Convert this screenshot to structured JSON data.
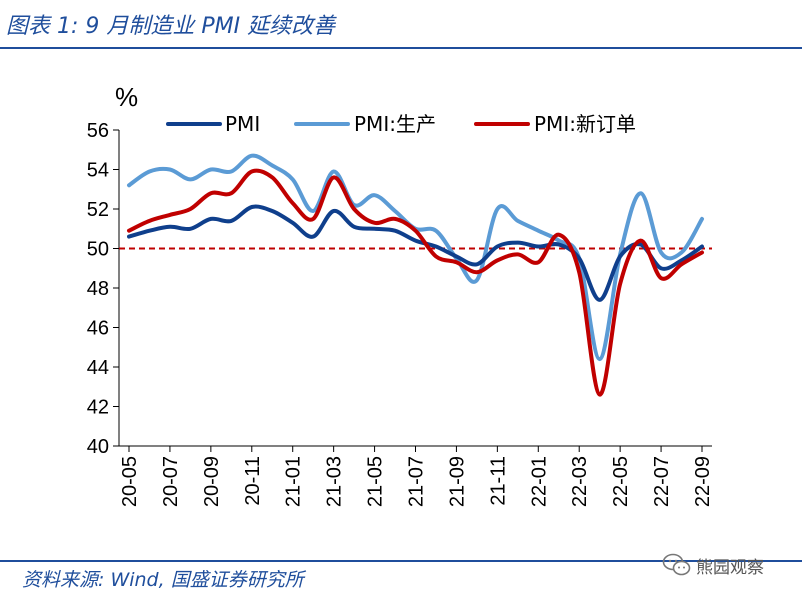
{
  "header": {
    "title": "图表 1:  9 月制造业 PMI 延续改善"
  },
  "footer": {
    "source": "资料来源:  Wind,  国盛证券研究所",
    "watermark_text": "熊园观察",
    "watermark_icon": "wechat-icon"
  },
  "colors": {
    "brand": "#1f4e9c",
    "pmi": "#0f3f8c",
    "production": "#5b9bd5",
    "new_orders": "#c00000",
    "reference": "#c00000"
  },
  "chart_data": {
    "type": "line",
    "title": "9 月制造业 PMI 延续改善",
    "unit_label": "%",
    "xlabel": "",
    "ylabel": "%",
    "ylim": [
      40,
      56
    ],
    "yticks": [
      40,
      42,
      44,
      46,
      48,
      50,
      52,
      54,
      56
    ],
    "x": [
      "20-05",
      "20-06",
      "20-07",
      "20-08",
      "20-09",
      "20-10",
      "20-11",
      "20-12",
      "21-01",
      "21-02",
      "21-03",
      "21-04",
      "21-05",
      "21-06",
      "21-07",
      "21-08",
      "21-09",
      "21-10",
      "21-11",
      "21-12",
      "22-01",
      "22-02",
      "22-03",
      "22-04",
      "22-05",
      "22-06",
      "22-07",
      "22-08",
      "22-09"
    ],
    "xtick_labels": [
      "20-05",
      "20-07",
      "20-09",
      "20-11",
      "21-01",
      "21-03",
      "21-05",
      "21-07",
      "21-09",
      "21-11",
      "22-01",
      "22-03",
      "22-05",
      "22-07",
      "22-09"
    ],
    "reference_line": {
      "value": 50,
      "style": "dashed"
    },
    "legend_position": "top",
    "series": [
      {
        "name": "PMI",
        "color_key": "pmi",
        "values": [
          50.6,
          50.9,
          51.1,
          51.0,
          51.5,
          51.4,
          52.1,
          51.9,
          51.3,
          50.6,
          51.9,
          51.1,
          51.0,
          50.9,
          50.4,
          50.1,
          49.6,
          49.2,
          50.1,
          50.3,
          50.1,
          50.2,
          49.5,
          47.4,
          49.6,
          50.2,
          49.0,
          49.4,
          50.1
        ]
      },
      {
        "name": "PMI:生产",
        "color_key": "production",
        "values": [
          53.2,
          53.9,
          54.0,
          53.5,
          54.0,
          53.9,
          54.7,
          54.2,
          53.5,
          51.9,
          53.9,
          52.2,
          52.7,
          51.9,
          51.0,
          50.9,
          49.5,
          48.4,
          52.0,
          51.4,
          50.9,
          50.4,
          49.5,
          44.4,
          49.7,
          52.8,
          49.8,
          49.8,
          51.5
        ]
      },
      {
        "name": "PMI:新订单",
        "color_key": "new_orders",
        "values": [
          50.9,
          51.4,
          51.7,
          52.0,
          52.8,
          52.8,
          53.9,
          53.6,
          52.3,
          51.5,
          53.6,
          52.0,
          51.3,
          51.5,
          50.9,
          49.6,
          49.3,
          48.8,
          49.4,
          49.7,
          49.3,
          50.7,
          48.8,
          42.6,
          48.2,
          50.4,
          48.5,
          49.2,
          49.8
        ]
      }
    ]
  }
}
